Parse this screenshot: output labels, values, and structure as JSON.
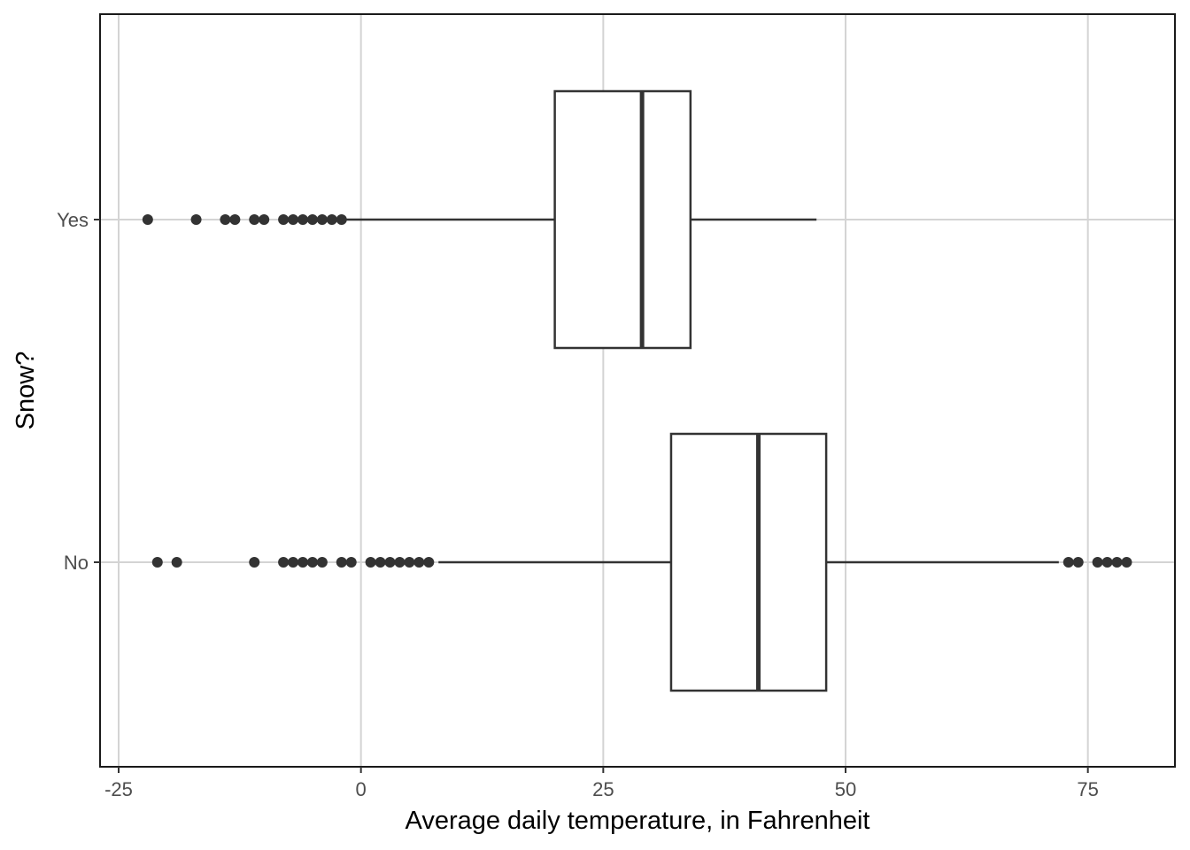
{
  "chart_data": {
    "type": "boxplot",
    "orientation": "horizontal",
    "xlabel": "Average daily temperature, in Fahrenheit",
    "ylabel": "Snow?",
    "xlim": [
      -27,
      84
    ],
    "x_ticks": [
      -25,
      0,
      25,
      50,
      75
    ],
    "x_tick_labels": [
      "-25",
      "0",
      "25",
      "50",
      "75"
    ],
    "categories": [
      "Yes",
      "No"
    ],
    "grid": true,
    "series": [
      {
        "category": "Yes",
        "lower_whisker": -1.5,
        "q1": 20,
        "median": 29,
        "q3": 34,
        "upper_whisker": 47,
        "outliers": [
          -22,
          -17,
          -14,
          -13,
          -11,
          -10,
          -8,
          -7,
          -6,
          -5,
          -4,
          -3,
          -2
        ]
      },
      {
        "category": "No",
        "lower_whisker": 8,
        "q1": 32,
        "median": 41,
        "q3": 48,
        "upper_whisker": 72,
        "outliers": [
          -21,
          -19,
          -11,
          -8,
          -7,
          -6,
          -5,
          -4,
          -2,
          -1,
          1,
          2,
          3,
          4,
          5,
          6,
          7,
          73,
          74,
          76,
          77,
          78,
          79
        ]
      }
    ]
  }
}
